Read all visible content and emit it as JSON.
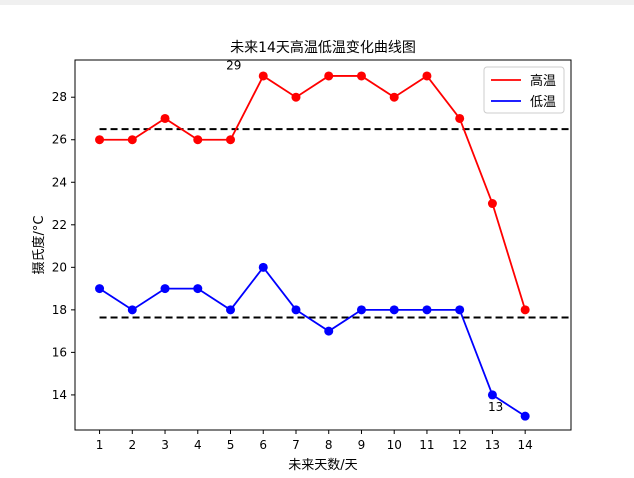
{
  "chart_data": {
    "type": "line",
    "title": "未来14天高温低温变化曲线图",
    "xlabel": "未来天数/天",
    "ylabel": "摄氏度/°C",
    "x": [
      1,
      2,
      3,
      4,
      5,
      6,
      7,
      8,
      9,
      10,
      11,
      12,
      13,
      14
    ],
    "xlim": [
      0.25,
      15.4
    ],
    "ylim": [
      12.35,
      29.75
    ],
    "yticks": [
      14,
      16,
      18,
      20,
      22,
      24,
      26,
      28
    ],
    "series": [
      {
        "name": "高温",
        "color": "#ff0000",
        "values": [
          26,
          26,
          27,
          26,
          26,
          29,
          28,
          29,
          29,
          28,
          29,
          27,
          23,
          18
        ]
      },
      {
        "name": "低温",
        "color": "#0000ff",
        "values": [
          19,
          18,
          19,
          19,
          18,
          20,
          18,
          17,
          18,
          18,
          18,
          18,
          14,
          13
        ]
      }
    ],
    "reference_lines": [
      {
        "y": 26.5,
        "x_range": [
          1,
          15.4
        ],
        "style": "dashed",
        "color": "#000000"
      },
      {
        "y": 17.64,
        "x_range": [
          1,
          15.4
        ],
        "style": "dashed",
        "color": "#000000"
      }
    ],
    "annotations": [
      {
        "text": "29",
        "x": 5.1,
        "y": 29.3
      },
      {
        "text": "13",
        "x": 13.1,
        "y": 13.25
      }
    ],
    "legend_position": "top-right"
  }
}
